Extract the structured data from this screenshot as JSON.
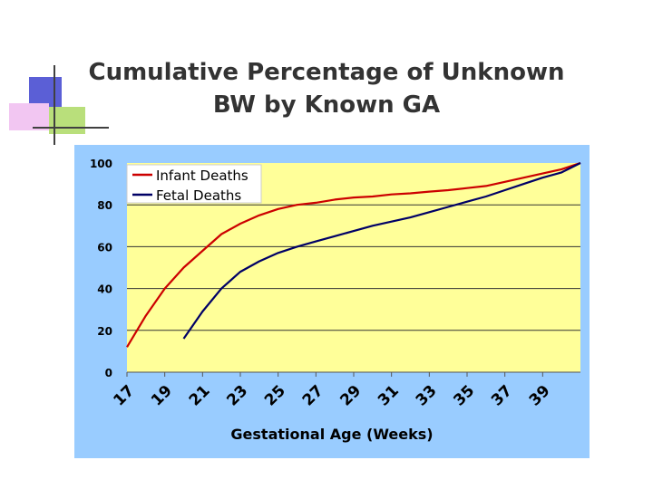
{
  "title": [
    "Cumulative Percentage of Unknown",
    "BW by Known GA"
  ],
  "colors": {
    "background": "#99ccff",
    "plot_area": "#ffff99",
    "infant": "#cc0000",
    "fetal": "#000066",
    "decor_blue": "#5b5fd6",
    "decor_pink": "#f2c6f2",
    "decor_green": "#b9df7b"
  },
  "chart_data": {
    "type": "line",
    "title": "",
    "xlabel": "Gestational Age (Weeks)",
    "ylabel": "",
    "xlim": [
      17,
      41
    ],
    "ylim": [
      0,
      100
    ],
    "yticks": [
      0,
      20,
      40,
      60,
      80,
      100
    ],
    "xticks": [
      17,
      19,
      21,
      23,
      25,
      27,
      29,
      31,
      33,
      35,
      37,
      39
    ],
    "grid": "horizontal",
    "legend": "top-left",
    "series": [
      {
        "name": "Infant Deaths",
        "color": "#cc0000",
        "points": [
          [
            17,
            12
          ],
          [
            18,
            27
          ],
          [
            19,
            40
          ],
          [
            20,
            50
          ],
          [
            21,
            58
          ],
          [
            22,
            66
          ],
          [
            23,
            71
          ],
          [
            24,
            75
          ],
          [
            25,
            78
          ],
          [
            26,
            80
          ],
          [
            27,
            81
          ],
          [
            28,
            82.5
          ],
          [
            29,
            83.5
          ],
          [
            30,
            84
          ],
          [
            31,
            85
          ],
          [
            32,
            85.5
          ],
          [
            33,
            86.3
          ],
          [
            34,
            87
          ],
          [
            35,
            88
          ],
          [
            36,
            89
          ],
          [
            37,
            91
          ],
          [
            38,
            93
          ],
          [
            39,
            95
          ],
          [
            40,
            97
          ],
          [
            41,
            100
          ]
        ]
      },
      {
        "name": "Fetal Deaths",
        "color": "#000066",
        "points": [
          [
            20,
            16
          ],
          [
            21,
            29
          ],
          [
            22,
            40
          ],
          [
            23,
            48
          ],
          [
            24,
            53
          ],
          [
            25,
            57
          ],
          [
            26,
            60
          ],
          [
            27,
            62.5
          ],
          [
            28,
            65
          ],
          [
            29,
            67.5
          ],
          [
            30,
            70
          ],
          [
            31,
            72
          ],
          [
            32,
            74
          ],
          [
            33,
            76.5
          ],
          [
            34,
            79
          ],
          [
            35,
            81.5
          ],
          [
            36,
            84
          ],
          [
            37,
            87
          ],
          [
            38,
            90
          ],
          [
            39,
            93
          ],
          [
            40,
            95.5
          ],
          [
            41,
            100
          ]
        ]
      }
    ]
  }
}
